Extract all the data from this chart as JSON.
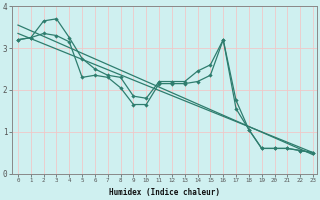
{
  "xlabel": "Humidex (Indice chaleur)",
  "bg_color": "#cff0f0",
  "grid_color": "#f0c8c8",
  "line_color": "#2e7d6e",
  "series_with_markers": [
    {
      "x": [
        0,
        1,
        2,
        3,
        4,
        5,
        6,
        7,
        8,
        9,
        10,
        11,
        12,
        13,
        14,
        15,
        16,
        17,
        18,
        19,
        20,
        21,
        22,
        23
      ],
      "y": [
        3.2,
        3.25,
        3.65,
        3.7,
        3.25,
        2.75,
        2.5,
        2.35,
        2.3,
        1.85,
        1.8,
        2.2,
        2.2,
        2.2,
        2.45,
        2.6,
        3.2,
        1.55,
        1.05,
        0.6,
        0.6,
        0.6,
        0.55,
        0.5
      ]
    },
    {
      "x": [
        0,
        1,
        2,
        3,
        4,
        5,
        6,
        7,
        8,
        9,
        10,
        11,
        12,
        13,
        14,
        15,
        16,
        17,
        18,
        19,
        20,
        21,
        22,
        23
      ],
      "y": [
        3.2,
        3.25,
        3.35,
        3.3,
        3.15,
        2.3,
        2.35,
        2.3,
        2.05,
        1.65,
        1.65,
        2.15,
        2.15,
        2.15,
        2.2,
        2.35,
        3.2,
        1.75,
        1.05,
        0.6,
        0.6,
        0.6,
        0.55,
        0.5
      ]
    }
  ],
  "series_linear": [
    {
      "x": [
        0,
        23
      ],
      "y": [
        3.55,
        0.45
      ]
    },
    {
      "x": [
        0,
        23
      ],
      "y": [
        3.35,
        0.5
      ]
    }
  ],
  "x_start": 0,
  "x_end": 23,
  "y_min": 0,
  "y_max": 4,
  "yticks": [
    0,
    1,
    2,
    3,
    4
  ],
  "xticks": [
    0,
    1,
    2,
    3,
    4,
    5,
    6,
    7,
    8,
    9,
    10,
    11,
    12,
    13,
    14,
    15,
    16,
    17,
    18,
    19,
    20,
    21,
    22,
    23
  ]
}
